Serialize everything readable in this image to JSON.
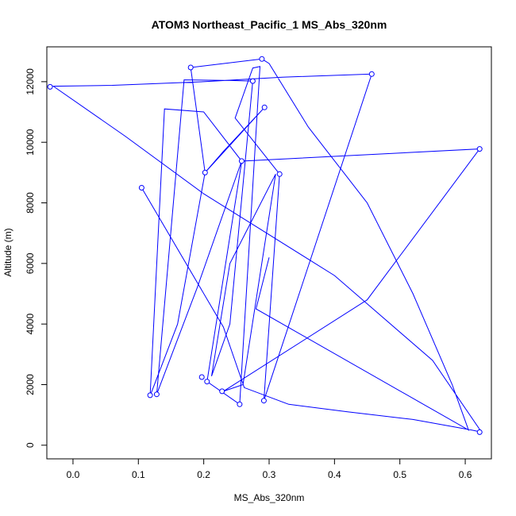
{
  "chart_data": {
    "type": "line",
    "title": "ATOM3 Northeast_Pacific_1 MS_Abs_320nm",
    "xlabel": "MS_Abs_320nm",
    "ylabel": "Altitude (m)",
    "xlim": [
      -0.04,
      0.64
    ],
    "ylim": [
      -450,
      13150
    ],
    "x_ticks": [
      0.0,
      0.1,
      0.2,
      0.3,
      0.4,
      0.5,
      0.6
    ],
    "x_tick_labels": [
      "0.0",
      "0.1",
      "0.2",
      "0.3",
      "0.4",
      "0.5",
      "0.6"
    ],
    "y_ticks": [
      0,
      2000,
      4000,
      6000,
      8000,
      10000,
      12000
    ],
    "y_tick_labels": [
      "0",
      "2000",
      "4000",
      "6000",
      "8000",
      "10000",
      "12000"
    ],
    "grid": false,
    "series_color": "#0000ff",
    "series": [
      {
        "x": [
          0.105,
          0.23,
          0.262,
          0.33,
          0.42,
          0.52,
          0.61,
          0.625,
          0.55,
          0.4,
          0.2,
          0.08,
          -0.03,
          0.06,
          0.2,
          0.32,
          0.457,
          0.292,
          0.316,
          0.248,
          0.275,
          0.286,
          0.255,
          0.205,
          0.258,
          0.26,
          0.622,
          0.45,
          0.23,
          0.26,
          0.31,
          0.24,
          0.212,
          0.24,
          0.275,
          0.24,
          0.17,
          0.128,
          0.19,
          0.258,
          0.2,
          0.14,
          0.118,
          0.16,
          0.202,
          0.23,
          0.293,
          0.202,
          0.18,
          0.289,
          0.3,
          0.36,
          0.45,
          0.52,
          0.58,
          0.605,
          0.28,
          0.3
        ],
        "y": [
          8500,
          3900,
          1900,
          1350,
          1100,
          850,
          500,
          430,
          2800,
          5600,
          8300,
          10200,
          11850,
          11880,
          12000,
          12150,
          12250,
          1470,
          8950,
          10800,
          12450,
          12500,
          1350,
          2100,
          9350,
          9380,
          9780,
          4800,
          1780,
          2000,
          8950,
          6000,
          2280,
          4000,
          12020,
          12040,
          12060,
          1680,
          5200,
          9380,
          11000,
          11100,
          1630,
          4000,
          9000,
          9700,
          11150,
          9000,
          12470,
          12750,
          12600,
          10500,
          8000,
          5000,
          2000,
          500,
          4500,
          6200
        ]
      }
    ],
    "markers": {
      "x": [
        0.105,
        0.255,
        0.622,
        -0.035,
        0.457,
        0.292,
        0.316,
        0.18,
        0.289,
        0.622,
        0.258,
        0.128,
        0.275,
        0.205,
        0.197,
        0.293,
        0.202,
        0.118,
        0.228
      ],
      "y": [
        8500,
        1350,
        430,
        11830,
        12250,
        1470,
        8950,
        12470,
        12750,
        9780,
        9380,
        1680,
        12020,
        2100,
        2250,
        11150,
        9000,
        1650,
        1780
      ]
    }
  }
}
